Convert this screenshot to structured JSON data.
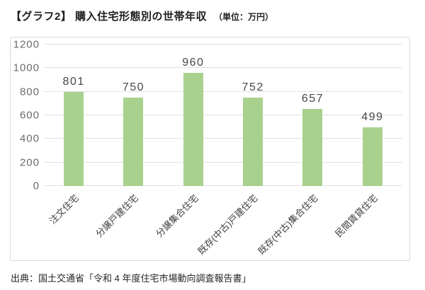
{
  "header": {
    "title": "【グラフ2】 購入住宅形態別の世帯年収",
    "unit": "（単位：万円）"
  },
  "chart_data": {
    "type": "bar",
    "title": "購入住宅形態別の世帯年収",
    "unit_label": "万円",
    "categories": [
      "注文住宅",
      "分譲戸建住宅",
      "分譲集合住宅",
      "既存(中古)戸建住宅",
      "既存(中古)集合住宅",
      "民間賃貸住宅"
    ],
    "values": [
      801,
      750,
      960,
      752,
      657,
      499
    ],
    "xlabel": "",
    "ylabel": "",
    "ylim": [
      0,
      1200
    ],
    "yticks": [
      0,
      200,
      400,
      600,
      800,
      1000,
      1200
    ],
    "grid": true,
    "legend_position": "none",
    "bar_color": "#a9d18e",
    "value_labels_shown": true
  },
  "footer": {
    "source": "出典：国土交通省「令和 4 年度住宅市場動向調査報告書」"
  },
  "colors": {
    "bar": "#a9d18e",
    "grid": "#e0e0e0",
    "frame_border": "#d9d9d9",
    "axis_label": "#6b6b6b",
    "value_label": "#474747",
    "category_label": "#404040",
    "title_text": "#1f1f1f",
    "background": "#ffffff"
  }
}
